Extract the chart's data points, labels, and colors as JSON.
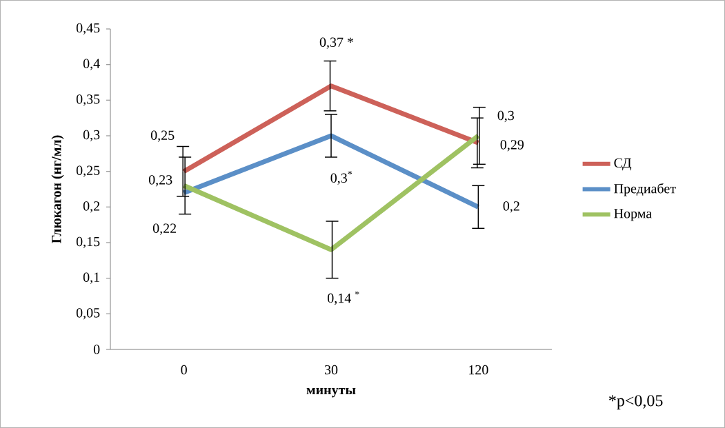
{
  "chart_data": {
    "type": "line",
    "xlabel": "минуты",
    "ylabel": "Глюкагон (нг/мл)",
    "categories": [
      "0",
      "30",
      "120"
    ],
    "series": [
      {
        "name": "СД",
        "color": "#cd6159",
        "values": [
          0.25,
          0.37,
          0.29
        ],
        "errors": [
          0.035,
          0.035,
          0.035
        ],
        "value_labels": [
          "0,25",
          "0,37 *",
          "0,29"
        ]
      },
      {
        "name": "Предиабет",
        "color": "#5b8fc7",
        "values": [
          0.22,
          0.3,
          0.2
        ],
        "errors": [
          null,
          0.03,
          0.03
        ],
        "value_labels": [
          "0,22",
          "0,3$^{*}$",
          "0,2"
        ]
      },
      {
        "name": "Норма",
        "color": "#9fc262",
        "values": [
          0.23,
          0.14,
          0.3
        ],
        "errors": [
          0.04,
          0.04,
          0.04
        ],
        "value_labels": [
          "0,23",
          "0,14 $^{*}$",
          "0,3"
        ]
      }
    ],
    "ylim": [
      0,
      0.45
    ],
    "yticks": [
      0,
      {
        "value": 0.05,
        "label": "0,05"
      },
      {
        "value": 0.1,
        "label": "0,1"
      },
      {
        "value": 0.15,
        "label": "0,15"
      },
      {
        "value": 0.2,
        "label": "0,2"
      },
      {
        "value": 0.25,
        "label": "0,25"
      },
      {
        "value": 0.3,
        "label": "0,3"
      },
      {
        "value": 0.35,
        "label": "0,35"
      },
      {
        "value": 0.4,
        "label": "0,4"
      },
      {
        "value": 0.45,
        "label": "0,45"
      }
    ],
    "grid": false,
    "legend": "right",
    "marker": "none",
    "line_style": "solid",
    "annotations": [
      "*p<0,05"
    ]
  }
}
